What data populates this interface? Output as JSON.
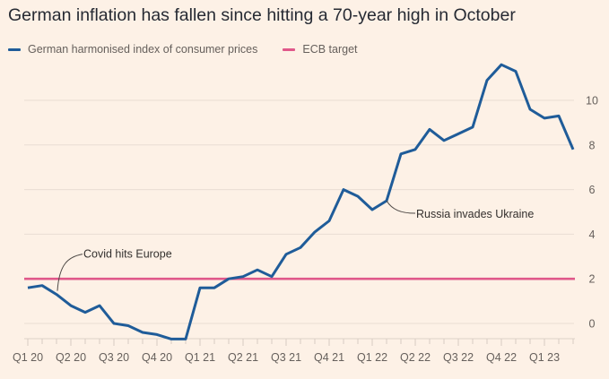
{
  "chart_data": {
    "type": "line",
    "title": "German inflation has fallen since hitting a 70-year high in October",
    "xlabel": "",
    "ylabel": "",
    "ylim": [
      -0.9,
      12
    ],
    "yticks": [
      0,
      2,
      4,
      6,
      8,
      10
    ],
    "grid": true,
    "legend_position": "top-left",
    "x_tick_labels": [
      "Q1 20",
      "Q2 20",
      "Q3 20",
      "Q4 20",
      "Q1 21",
      "Q2 21",
      "Q3 21",
      "Q4 21",
      "Q1 22",
      "Q2 22",
      "Q3 22",
      "Q4 22",
      "Q1 23"
    ],
    "x": [
      "Jan 20",
      "Feb 20",
      "Mar 20",
      "Apr 20",
      "May 20",
      "Jun 20",
      "Jul 20",
      "Aug 20",
      "Sep 20",
      "Oct 20",
      "Nov 20",
      "Dec 20",
      "Jan 21",
      "Feb 21",
      "Mar 21",
      "Apr 21",
      "May 21",
      "Jun 21",
      "Jul 21",
      "Aug 21",
      "Sep 21",
      "Oct 21",
      "Nov 21",
      "Dec 21",
      "Jan 22",
      "Feb 22",
      "Mar 22",
      "Apr 22",
      "May 22",
      "Jun 22",
      "Jul 22",
      "Aug 22",
      "Sep 22",
      "Oct 22",
      "Nov 22",
      "Dec 22",
      "Jan 23",
      "Feb 23",
      "Mar 23"
    ],
    "series": [
      {
        "name": "German harmonised index of consumer prices",
        "color": "#1f5c99",
        "values": [
          1.6,
          1.7,
          1.3,
          0.8,
          0.5,
          0.8,
          0.0,
          -0.1,
          -0.4,
          -0.5,
          -0.7,
          -0.7,
          1.6,
          1.6,
          2.0,
          2.1,
          2.4,
          2.1,
          3.1,
          3.4,
          4.1,
          4.6,
          6.0,
          5.7,
          5.1,
          5.5,
          7.6,
          7.8,
          8.7,
          8.2,
          8.5,
          8.8,
          10.9,
          11.6,
          11.3,
          9.6,
          9.2,
          9.3,
          7.8
        ]
      },
      {
        "name": "ECB target",
        "color": "#e0588a",
        "values": [
          2,
          2,
          2,
          2,
          2,
          2,
          2,
          2,
          2,
          2,
          2,
          2,
          2,
          2,
          2,
          2,
          2,
          2,
          2,
          2,
          2,
          2,
          2,
          2,
          2,
          2,
          2,
          2,
          2,
          2,
          2,
          2,
          2,
          2,
          2,
          2,
          2,
          2,
          2
        ]
      }
    ],
    "annotations": [
      {
        "text": "Covid hits Europe",
        "x": "Mar 20"
      },
      {
        "text": "Russia invades Ukraine",
        "x": "Feb 22"
      }
    ]
  }
}
